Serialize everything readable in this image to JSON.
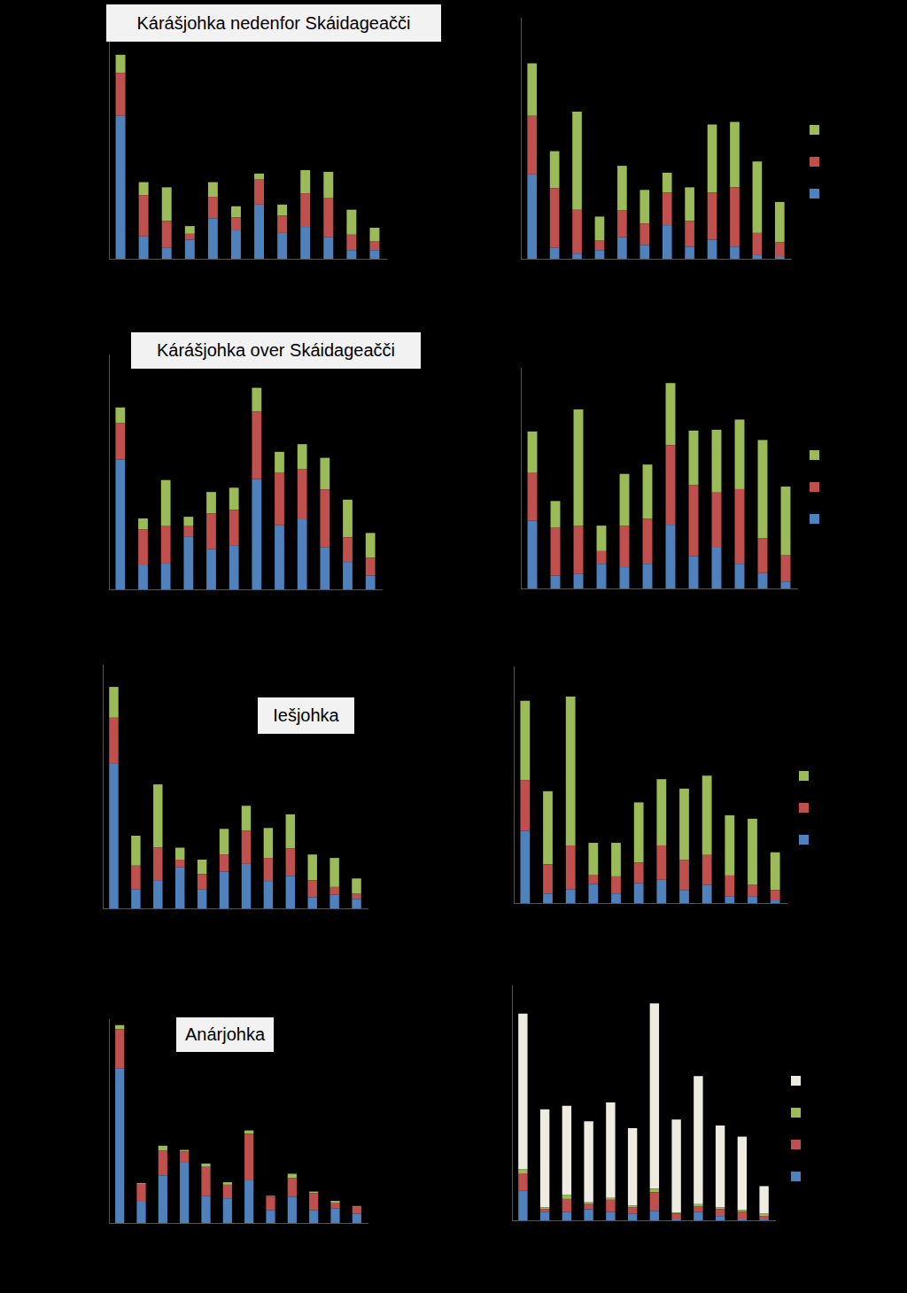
{
  "chart_data": [
    {
      "type": "bar",
      "title": "Kárášjohka nedenfor Skáidageačči",
      "stacked": true,
      "tick_labels": false,
      "categories": [
        null,
        null,
        null,
        null,
        null,
        null,
        null,
        null,
        null,
        null,
        null,
        null
      ],
      "ylim": [
        0,
        280
      ],
      "series": [
        {
          "color": "#4f81bd",
          "values": [
            166,
            26,
            13,
            22,
            47,
            33,
            63,
            30,
            37,
            25,
            10,
            10
          ]
        },
        {
          "color": "#c0504d",
          "values": [
            50,
            48,
            31,
            7,
            25,
            15,
            29,
            20,
            39,
            46,
            18,
            10
          ]
        },
        {
          "color": "#9bbb59",
          "values": [
            21,
            15,
            39,
            9,
            17,
            13,
            7,
            13,
            27,
            30,
            29,
            16
          ]
        }
      ]
    },
    {
      "type": "bar",
      "stacked": true,
      "tick_labels": false,
      "legend": "right",
      "categories": [
        null,
        null,
        null,
        null,
        null,
        null,
        null,
        null,
        null,
        null,
        null,
        null
      ],
      "ylim": [
        0,
        280
      ],
      "series": [
        {
          "color": "#4f81bd",
          "values": [
            98,
            13,
            6,
            10,
            25,
            16,
            39,
            14,
            22,
            14,
            5,
            3
          ]
        },
        {
          "color": "#c0504d",
          "values": [
            68,
            69,
            51,
            11,
            31,
            25,
            38,
            30,
            55,
            69,
            25,
            16
          ]
        },
        {
          "color": "#9bbb59",
          "values": [
            61,
            43,
            114,
            28,
            52,
            39,
            23,
            39,
            79,
            76,
            83,
            47
          ]
        }
      ]
    },
    {
      "type": "bar",
      "title": "Kárášjohka over Skáidageačči",
      "stacked": true,
      "tick_labels": false,
      "categories": [
        null,
        null,
        null,
        null,
        null,
        null,
        null,
        null,
        null,
        null,
        null,
        null
      ],
      "ylim": [
        0,
        275
      ],
      "series": [
        {
          "color": "#4f81bd",
          "values": [
            152,
            28,
            31,
            62,
            47,
            51,
            129,
            75,
            82,
            49,
            32,
            16
          ]
        },
        {
          "color": "#c0504d",
          "values": [
            43,
            42,
            43,
            12,
            42,
            42,
            79,
            62,
            59,
            68,
            29,
            21
          ]
        },
        {
          "color": "#9bbb59",
          "values": [
            18,
            13,
            54,
            11,
            25,
            26,
            28,
            24,
            29,
            37,
            44,
            29
          ]
        }
      ]
    },
    {
      "type": "bar",
      "stacked": true,
      "tick_labels": false,
      "legend": "right",
      "categories": [
        null,
        null,
        null,
        null,
        null,
        null,
        null,
        null,
        null,
        null,
        null,
        null
      ],
      "ylim": [
        0,
        260
      ],
      "series": [
        {
          "color": "#4f81bd",
          "values": [
            80,
            15,
            17,
            29,
            25,
            29,
            75,
            38,
            49,
            29,
            18,
            8
          ]
        },
        {
          "color": "#c0504d",
          "values": [
            56,
            57,
            57,
            15,
            49,
            53,
            94,
            84,
            64,
            88,
            41,
            31
          ]
        },
        {
          "color": "#9bbb59",
          "values": [
            49,
            31,
            137,
            30,
            61,
            64,
            73,
            64,
            74,
            82,
            116,
            81
          ]
        }
      ]
    },
    {
      "type": "bar",
      "title": "Iešjohka",
      "stacked": true,
      "tick_labels": false,
      "categories": [
        null,
        null,
        null,
        null,
        null,
        null,
        null,
        null,
        null,
        null,
        null,
        null
      ],
      "ylim": [
        0,
        285
      ],
      "series": [
        {
          "color": "#4f81bd",
          "values": [
            169,
            22,
            33,
            48,
            22,
            43,
            52,
            32,
            38,
            13,
            16,
            11
          ]
        },
        {
          "color": "#c0504d",
          "values": [
            54,
            28,
            38,
            9,
            18,
            20,
            39,
            27,
            32,
            20,
            9,
            6
          ]
        },
        {
          "color": "#9bbb59",
          "values": [
            36,
            35,
            74,
            14,
            17,
            30,
            29,
            35,
            40,
            30,
            34,
            18
          ]
        }
      ]
    },
    {
      "type": "bar",
      "stacked": true,
      "tick_labels": false,
      "legend": "right",
      "categories": [
        null,
        null,
        null,
        null,
        null,
        null,
        null,
        null,
        null,
        null,
        null,
        null
      ],
      "ylim": [
        0,
        275
      ],
      "series": [
        {
          "color": "#4f81bd",
          "values": [
            84,
            11,
            16,
            22,
            11,
            23,
            27,
            15,
            21,
            8,
            8,
            3
          ]
        },
        {
          "color": "#c0504d",
          "values": [
            59,
            34,
            51,
            11,
            20,
            24,
            40,
            35,
            35,
            24,
            13,
            12
          ]
        },
        {
          "color": "#9bbb59",
          "values": [
            92,
            85,
            173,
            37,
            39,
            70,
            77,
            83,
            92,
            70,
            77,
            44
          ]
        }
      ]
    },
    {
      "type": "bar",
      "title": "Anárjohka",
      "stacked": true,
      "tick_labels": false,
      "categories": [
        null,
        null,
        null,
        null,
        null,
        null,
        null,
        null,
        null,
        null,
        null,
        null
      ],
      "ylim": [
        0,
        240
      ],
      "series": [
        {
          "color": "#4f81bd",
          "values": [
            182,
            26,
            56,
            71,
            32,
            29,
            51,
            15,
            31,
            15,
            17,
            11
          ]
        },
        {
          "color": "#c0504d",
          "values": [
            46,
            20,
            29,
            13,
            34,
            16,
            54,
            16,
            22,
            20,
            7,
            8
          ]
        },
        {
          "color": "#9bbb59",
          "values": [
            5,
            1,
            6,
            2,
            4,
            3,
            4,
            1,
            5,
            2,
            2,
            1
          ]
        }
      ]
    },
    {
      "type": "bar",
      "stacked": true,
      "tick_labels": false,
      "legend": "right",
      "categories": [
        null,
        null,
        null,
        null,
        null,
        null,
        null,
        null,
        null,
        null,
        null,
        null
      ],
      "ylim": [
        0,
        275
      ],
      "series": [
        {
          "color": "#4f81bd",
          "values": [
            35,
            10,
            10,
            13,
            10,
            8,
            11,
            2,
            10,
            5,
            2,
            1
          ]
        },
        {
          "color": "#c0504d",
          "values": [
            20,
            3,
            15,
            6,
            14,
            7,
            22,
            6,
            6,
            8,
            8,
            4
          ]
        },
        {
          "color": "#9bbb59",
          "values": [
            5,
            2,
            5,
            2,
            3,
            2,
            4,
            1,
            3,
            2,
            2,
            3
          ]
        },
        {
          "color": "#eeece1",
          "values": [
            182,
            115,
            104,
            95,
            111,
            91,
            217,
            109,
            150,
            96,
            86,
            32
          ]
        }
      ]
    }
  ]
}
